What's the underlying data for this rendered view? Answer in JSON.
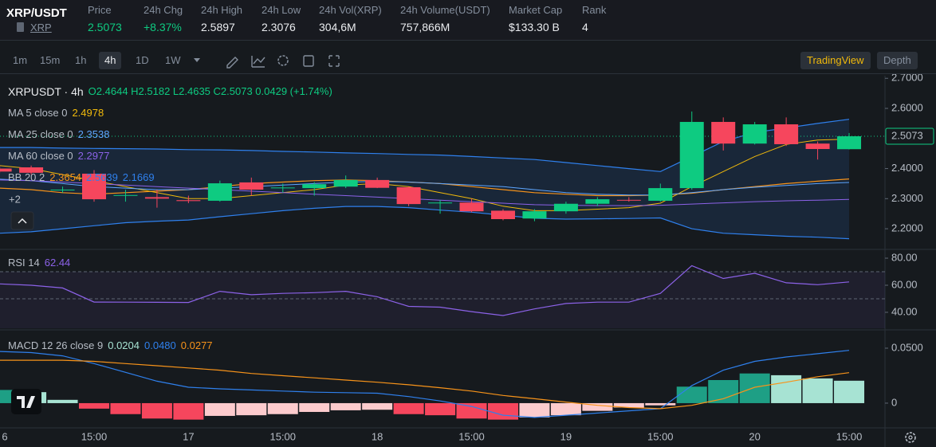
{
  "header": {
    "symbol": "XRP/USDT",
    "coin": "XRP",
    "stats": [
      {
        "label": "Price",
        "value": "2.5073",
        "color": "#0ecb81"
      },
      {
        "label": "24h Chg",
        "value": "+8.37%",
        "color": "#0ecb81"
      },
      {
        "label": "24h High",
        "value": "2.5897"
      },
      {
        "label": "24h Low",
        "value": "2.3076"
      },
      {
        "label": "24h Vol(XRP)",
        "value": "304,6M"
      },
      {
        "label": "24h Volume(USDT)",
        "value": "757,866M"
      },
      {
        "label": "Market Cap",
        "value": "$133.30 B"
      },
      {
        "label": "Rank",
        "value": "4"
      }
    ]
  },
  "toolbar": {
    "intervals": [
      "1m",
      "15m",
      "1h",
      "4h",
      "1D",
      "1W"
    ],
    "active_interval": "4h",
    "views": [
      "TradingView",
      "Depth"
    ],
    "active_view": "TradingView"
  },
  "chart_data": [
    {
      "type": "candlestick",
      "legend": {
        "symbol": "XRPUSDT · 4h",
        "ohlc": "O2.4644 H2.5182 L2.4635 C2.5073 0.0429 (+1.74%)",
        "hidden": "+2"
      },
      "categories": [
        "6",
        null,
        null,
        "15:00",
        null,
        null,
        "17",
        null,
        null,
        "15:00",
        null,
        null,
        "18",
        null,
        null,
        "15:00",
        null,
        null,
        "19",
        null,
        null,
        "15:00",
        null,
        null,
        "20",
        null,
        null,
        "15:00"
      ],
      "open": [
        2.4,
        2.404,
        2.33,
        2.383,
        2.31,
        2.305,
        2.295,
        2.293,
        2.354,
        2.335,
        2.335,
        2.34,
        2.362,
        2.338,
        2.285,
        2.287,
        2.26,
        2.234,
        2.258,
        2.283,
        2.296,
        2.293,
        2.335,
        2.555,
        2.483,
        2.547,
        2.483,
        2.4644
      ],
      "high": [
        2.41,
        2.41,
        2.34,
        2.395,
        2.33,
        2.33,
        2.31,
        2.36,
        2.37,
        2.35,
        2.355,
        2.377,
        2.37,
        2.34,
        2.295,
        2.3,
        2.265,
        2.265,
        2.29,
        2.305,
        2.305,
        2.35,
        2.5897,
        2.57,
        2.555,
        2.57,
        2.49,
        2.5182
      ],
      "low": [
        2.385,
        2.38,
        2.32,
        2.29,
        2.29,
        2.27,
        2.285,
        2.29,
        2.31,
        2.32,
        2.31,
        2.335,
        2.335,
        2.275,
        2.25,
        2.255,
        2.228,
        2.225,
        2.25,
        2.275,
        2.29,
        2.29,
        2.33,
        2.46,
        2.48,
        2.475,
        2.43,
        2.4635
      ],
      "close": [
        2.39,
        2.386,
        2.33,
        2.298,
        2.312,
        2.3,
        2.292,
        2.351,
        2.33,
        2.337,
        2.348,
        2.362,
        2.336,
        2.282,
        2.287,
        2.258,
        2.232,
        2.258,
        2.283,
        2.298,
        2.294,
        2.335,
        2.555,
        2.483,
        2.547,
        2.481,
        2.465,
        2.5073
      ],
      "up_color": "#0ecb81",
      "down_color": "#f6465d",
      "series": [
        {
          "name": "MA 5 close 0",
          "color": "#f0b90b",
          "last": "2.4978",
          "values": [
            2.41,
            2.4,
            2.38,
            2.36,
            2.34,
            2.32,
            2.3,
            2.3,
            2.31,
            2.32,
            2.33,
            2.345,
            2.35,
            2.34,
            2.32,
            2.3,
            2.275,
            2.26,
            2.26,
            2.265,
            2.27,
            2.285,
            2.34,
            2.39,
            2.44,
            2.48,
            2.495,
            2.4978
          ]
        },
        {
          "name": "MA 25 close 0",
          "color": "#5ea6ff",
          "last": "2.3538",
          "values": [
            2.365,
            2.36,
            2.35,
            2.34,
            2.335,
            2.33,
            2.33,
            2.335,
            2.34,
            2.345,
            2.35,
            2.355,
            2.357,
            2.355,
            2.35,
            2.345,
            2.34,
            2.33,
            2.32,
            2.315,
            2.312,
            2.312,
            2.32,
            2.33,
            2.338,
            2.344,
            2.35,
            2.3538
          ]
        },
        {
          "name": "MA 60 close 0",
          "color": "#8c62e8",
          "last": "2.2977",
          "values": [
            2.362,
            2.36,
            2.355,
            2.35,
            2.345,
            2.34,
            2.335,
            2.33,
            2.325,
            2.32,
            2.315,
            2.31,
            2.305,
            2.3,
            2.295,
            2.29,
            2.285,
            2.28,
            2.278,
            2.277,
            2.277,
            2.278,
            2.282,
            2.286,
            2.29,
            2.293,
            2.295,
            2.2977
          ]
        }
      ],
      "bands": {
        "name": "BB 20 2",
        "colors": [
          "#f7931a",
          "#2f80ed",
          "#2f80ed"
        ],
        "fill": "#2f80ed",
        "last": [
          "2.3654",
          "2.5639",
          "2.1669"
        ],
        "middle": [
          2.335,
          2.33,
          2.32,
          2.315,
          2.32,
          2.325,
          2.33,
          2.34,
          2.35,
          2.355,
          2.36,
          2.362,
          2.36,
          2.355,
          2.35,
          2.34,
          2.33,
          2.32,
          2.315,
          2.31,
          2.31,
          2.312,
          2.318,
          2.33,
          2.34,
          2.35,
          2.358,
          2.3654
        ],
        "upper": [
          2.47,
          2.47,
          2.468,
          2.467,
          2.466,
          2.465,
          2.463,
          2.462,
          2.46,
          2.457,
          2.455,
          2.452,
          2.45,
          2.447,
          2.445,
          2.44,
          2.435,
          2.43,
          2.42,
          2.41,
          2.4,
          2.39,
          2.44,
          2.49,
          2.52,
          2.535,
          2.55,
          2.5639
        ],
        "lower": [
          2.185,
          2.19,
          2.2,
          2.21,
          2.22,
          2.225,
          2.229,
          2.24,
          2.25,
          2.26,
          2.268,
          2.274,
          2.274,
          2.27,
          2.262,
          2.255,
          2.245,
          2.235,
          2.232,
          2.233,
          2.234,
          2.236,
          2.2,
          2.185,
          2.18,
          2.175,
          2.172,
          2.1669
        ]
      },
      "last_price": 2.5073,
      "ylim": [
        2.134,
        2.706
      ],
      "yticks": [
        {
          "value": 2.2,
          "label": "2.2000"
        },
        {
          "value": 2.3,
          "label": "2.3000"
        },
        {
          "value": 2.4,
          "label": "2.4000"
        },
        {
          "value": 2.6,
          "label": "2.6000"
        },
        {
          "value": 2.7,
          "label": "2.7000"
        }
      ]
    },
    {
      "type": "line",
      "series": [
        {
          "name": "RSI 14",
          "color": "#8c62e8",
          "last": "62.44",
          "values": [
            61,
            60,
            58,
            47.6,
            47.5,
            47.4,
            47.3,
            55.5,
            53,
            54,
            54.5,
            55.5,
            51.5,
            44.4,
            43.8,
            40.5,
            37.6,
            42.5,
            46.5,
            47.5,
            47.5,
            54,
            74.5,
            65,
            68.8,
            61.8,
            60.4,
            62.44
          ]
        }
      ],
      "levels": [
        70,
        50
      ],
      "ylim": [
        28.2,
        85.9
      ],
      "yticks": [
        {
          "value": 40,
          "label": "40.00"
        },
        {
          "value": 60,
          "label": "60.00"
        },
        {
          "value": 80,
          "label": "80.00"
        }
      ]
    },
    {
      "type": "macd",
      "name": "MACD 12 26 close 9",
      "last": [
        "0.0204",
        "0.0480",
        "0.0277"
      ],
      "last_colors": [
        "#a7e3d3",
        "#2f80ed",
        "#f7931a"
      ],
      "histogram_colors": [
        "#1e9f85",
        "#a7e3d3",
        "#f6465d",
        "#fccbcd"
      ],
      "line_colors": [
        "#2f80ed",
        "#f7931a"
      ],
      "histogram": [
        0.012,
        0.01,
        0.003,
        -0.005,
        -0.01,
        -0.014,
        -0.015,
        -0.0116,
        -0.011,
        -0.01,
        -0.008,
        -0.0065,
        -0.006,
        -0.01,
        -0.011,
        -0.014,
        -0.015,
        -0.013,
        -0.011,
        -0.007,
        -0.004,
        -0.002,
        0.015,
        0.021,
        0.027,
        0.0254,
        0.0225,
        0.0204
      ],
      "macd": [
        0.047,
        0.046,
        0.043,
        0.036,
        0.028,
        0.02,
        0.0145,
        0.013,
        0.012,
        0.011,
        0.01,
        0.0095,
        0.009,
        0.006,
        0.002,
        -0.003,
        -0.011,
        -0.013,
        -0.011,
        -0.009,
        -0.007,
        -0.005,
        0.016,
        0.03,
        0.038,
        0.042,
        0.045,
        0.048
      ],
      "signal": [
        0.039,
        0.039,
        0.039,
        0.038,
        0.036,
        0.034,
        0.032,
        0.03,
        0.027,
        0.025,
        0.023,
        0.021,
        0.019,
        0.0167,
        0.014,
        0.011,
        0.007,
        0.004,
        0.001,
        -0.002,
        -0.004,
        -0.005,
        -0.002,
        0.004,
        0.0145,
        0.019,
        0.024,
        0.0277
      ],
      "ylim": [
        -0.0225,
        0.0652
      ],
      "yticks": [
        0,
        {
          "value": 0.05,
          "label": "0.0500"
        }
      ]
    }
  ]
}
